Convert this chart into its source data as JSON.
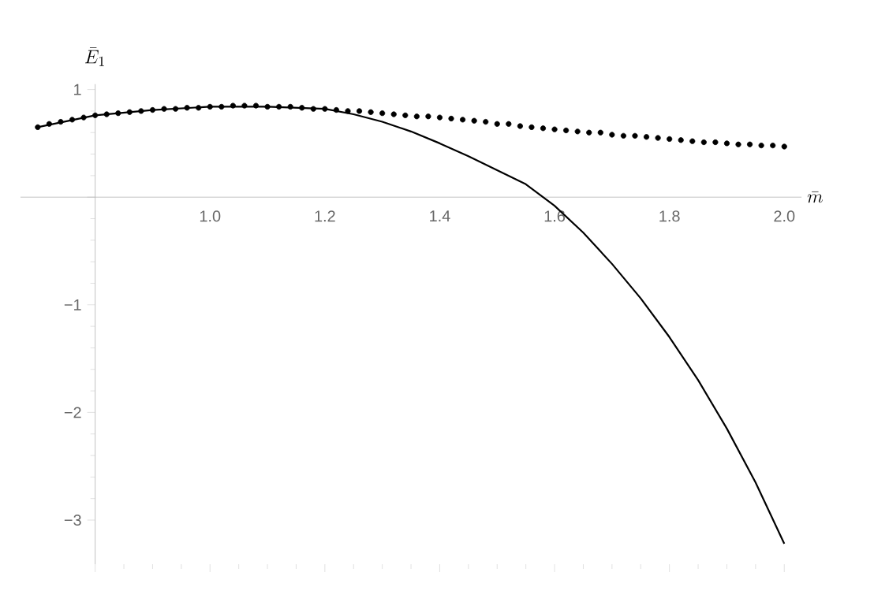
{
  "chart_data": {
    "type": "scatter",
    "xlabel": "\\bar{m}",
    "ylabel": "\\bar{E}_1",
    "xlim": [
      0.67,
      2.03
    ],
    "ylim": [
      -3.41,
      1.05
    ],
    "xticks": [
      {
        "value": 0.8,
        "label": null
      },
      {
        "value": 1.0,
        "label": "1.0"
      },
      1.2,
      1.4,
      1.6,
      1.8,
      {
        "value": 2.0,
        "label": "2.0"
      }
    ],
    "yticks": [
      {
        "value": -3,
        "label": "−3"
      },
      {
        "value": -2,
        "label": "−2"
      },
      {
        "value": -1,
        "label": "−1"
      },
      {
        "value": 0,
        "label": null
      },
      1
    ],
    "grid": false,
    "series": [
      {
        "marker": "circle",
        "color": "#000000",
        "x": [
          0.7,
          0.72,
          0.74,
          0.76,
          0.78,
          0.8,
          0.82,
          0.84,
          0.86,
          0.88,
          0.9,
          0.92,
          0.94,
          0.96,
          0.98,
          1.0,
          1.02,
          1.04,
          1.06,
          1.08,
          1.1,
          1.12,
          1.14,
          1.16,
          1.18,
          1.2,
          1.22,
          1.24,
          1.26,
          1.28,
          1.3,
          1.32,
          1.34,
          1.36,
          1.38,
          1.4,
          1.42,
          1.44,
          1.46,
          1.48,
          1.5,
          1.52,
          1.54,
          1.56,
          1.58,
          1.6,
          1.62,
          1.64,
          1.66,
          1.68,
          1.7,
          1.72,
          1.74,
          1.76,
          1.78,
          1.8,
          1.82,
          1.84,
          1.86,
          1.88,
          1.9,
          1.92,
          1.94,
          1.96,
          1.98,
          2.0
        ],
        "values": [
          0.65,
          0.68,
          0.7,
          0.72,
          0.74,
          0.76,
          0.77,
          0.78,
          0.79,
          0.8,
          0.81,
          0.82,
          0.82,
          0.83,
          0.83,
          0.84,
          0.84,
          0.85,
          0.85,
          0.85,
          0.84,
          0.84,
          0.84,
          0.83,
          0.82,
          0.82,
          0.81,
          0.8,
          0.8,
          0.79,
          0.78,
          0.77,
          0.76,
          0.75,
          0.75,
          0.74,
          0.73,
          0.72,
          0.71,
          0.7,
          0.68,
          0.68,
          0.66,
          0.65,
          0.64,
          0.63,
          0.62,
          0.61,
          0.6,
          0.6,
          0.58,
          0.57,
          0.57,
          0.56,
          0.55,
          0.54,
          0.53,
          0.52,
          0.51,
          0.51,
          0.5,
          0.49,
          0.49,
          0.48,
          0.48,
          0.47
        ]
      },
      {
        "type": "line",
        "line_style": "solid",
        "color": "#000000",
        "x": [
          0.7,
          0.8,
          0.9,
          1.0,
          1.1,
          1.2,
          1.25,
          1.3,
          1.35,
          1.4,
          1.45,
          1.5,
          1.55,
          1.6,
          1.65,
          1.7,
          1.75,
          1.8,
          1.85,
          1.9,
          1.95,
          2.0
        ],
        "values": [
          0.65,
          0.76,
          0.81,
          0.84,
          0.84,
          0.82,
          0.77,
          0.7,
          0.61,
          0.5,
          0.38,
          0.25,
          0.12,
          -0.08,
          -0.33,
          -0.62,
          -0.94,
          -1.3,
          -1.7,
          -2.15,
          -2.65,
          -3.22
        ]
      }
    ]
  }
}
